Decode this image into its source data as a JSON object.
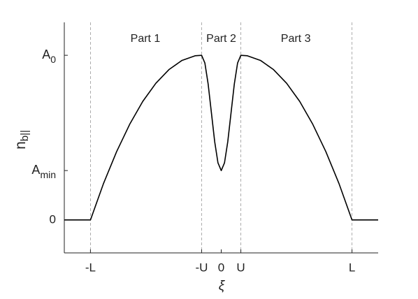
{
  "chart_data": {
    "type": "line",
    "xlabel": "ξ",
    "ylabel": {
      "text": "n",
      "sub": "b||"
    },
    "x": [
      -1.2,
      -1,
      -0.9,
      -0.8,
      -0.7,
      -0.6,
      -0.5,
      -0.4,
      -0.3,
      -0.2,
      -0.15,
      -0.125,
      -0.1,
      -0.075,
      -0.05,
      -0.025,
      0,
      0.025,
      0.05,
      0.075,
      0.1,
      0.125,
      0.15,
      0.2,
      0.3,
      0.4,
      0.5,
      0.6,
      0.7,
      0.8,
      0.9,
      1,
      1.2
    ],
    "series": [
      {
        "color": "#000000",
        "values": [
          0,
          0,
          0.222,
          0.415,
          0.581,
          0.72,
          0.83,
          0.913,
          0.969,
          0.997,
          1,
          0.953,
          0.825,
          0.65,
          0.475,
          0.347,
          0.3,
          0.347,
          0.475,
          0.65,
          0.825,
          0.953,
          1,
          0.997,
          0.969,
          0.913,
          0.83,
          0.72,
          0.581,
          0.415,
          0.222,
          0,
          0
        ]
      }
    ],
    "xlim": [
      -1.2,
      1.2
    ],
    "ylim": [
      -0.2,
      1.2
    ],
    "xticks": [
      {
        "value": -1,
        "label": "-L"
      },
      {
        "value": -0.15,
        "label": "-U"
      },
      0,
      {
        "value": 0.15,
        "label": "U"
      },
      {
        "value": 1,
        "label": "L"
      }
    ],
    "yticks": [
      0,
      {
        "value": 0.3,
        "label": "A",
        "sub": "min"
      },
      {
        "value": 1,
        "label": "A",
        "sub": "0"
      }
    ],
    "vlines": [
      -1,
      -0.15,
      0.15,
      1
    ],
    "annotations": [
      {
        "text": "Part 1",
        "x": -0.58,
        "y": 1.1
      },
      {
        "text": "Part 2",
        "x": 0,
        "y": 1.1
      },
      {
        "text": "Part 3",
        "x": 0.57,
        "y": 1.1
      }
    ]
  }
}
